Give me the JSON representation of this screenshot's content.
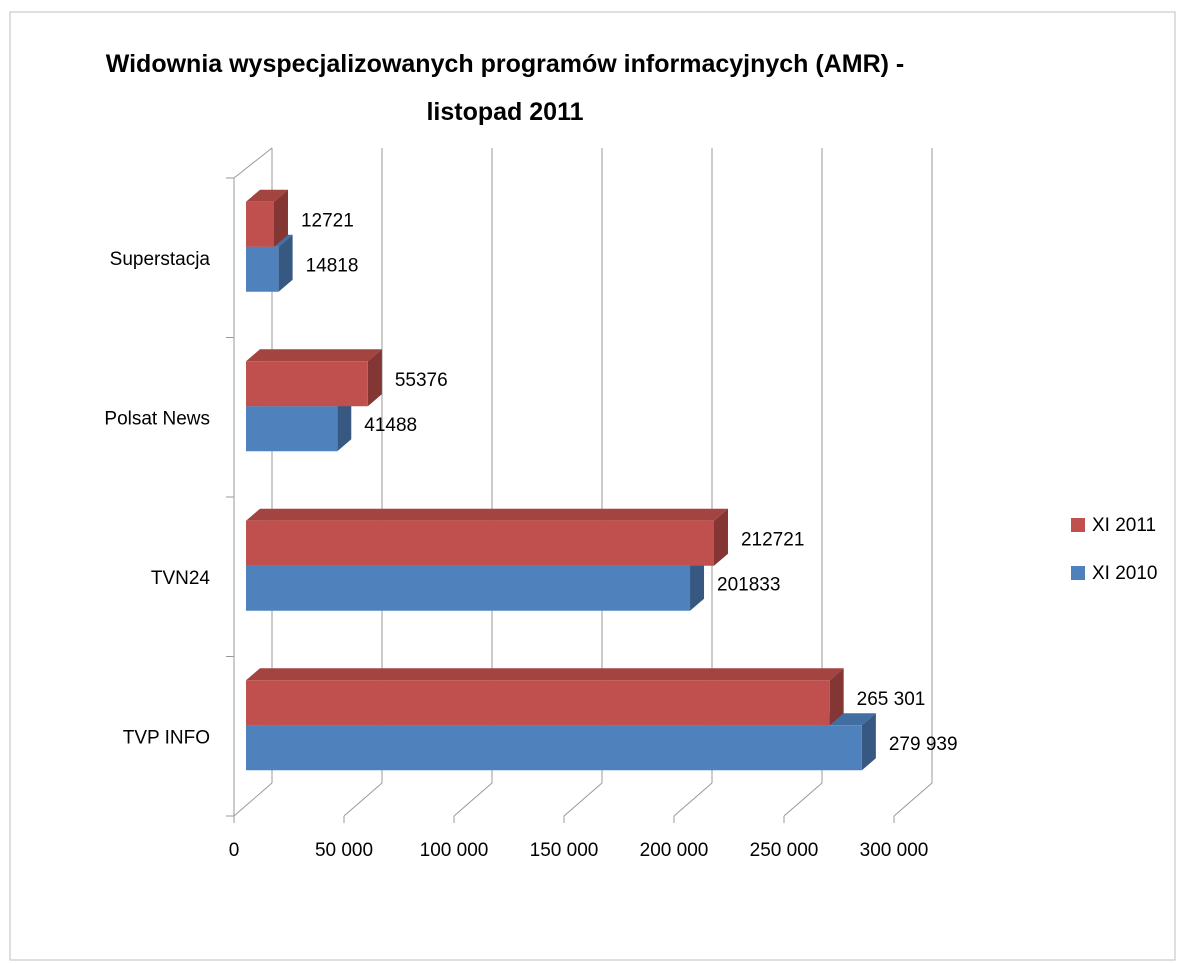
{
  "chart_data": {
    "type": "bar3d-horizontal",
    "title": "Widownia wyspecjalizowanych programów informacyjnych (AMR) - listopad 2011",
    "categories": [
      "Superstacja",
      "Polsat News",
      "TVN24",
      "TVP INFO"
    ],
    "series": [
      {
        "name": "XI 2011",
        "color": "#C0504D",
        "values": [
          12721,
          55376,
          212721,
          265301
        ],
        "value_labels": [
          "12721",
          "55376",
          "212721",
          "265 301"
        ]
      },
      {
        "name": "XI 2010",
        "color": "#4F81BD",
        "values": [
          14818,
          41488,
          201833,
          279939
        ],
        "value_labels": [
          "14818",
          "41488",
          "201833",
          "279 939"
        ]
      }
    ],
    "xlim": [
      0,
      300000
    ],
    "xticks": [
      0,
      {
        "value": 50000,
        "label": "50 000"
      },
      {
        "value": 100000,
        "label": "100 000"
      },
      {
        "value": 150000,
        "label": "150 000"
      },
      {
        "value": 200000,
        "label": "200 000"
      },
      {
        "value": 250000,
        "label": "250 000"
      },
      {
        "value": 300000,
        "label": "300 000"
      }
    ],
    "grid": true,
    "legend": "right"
  }
}
